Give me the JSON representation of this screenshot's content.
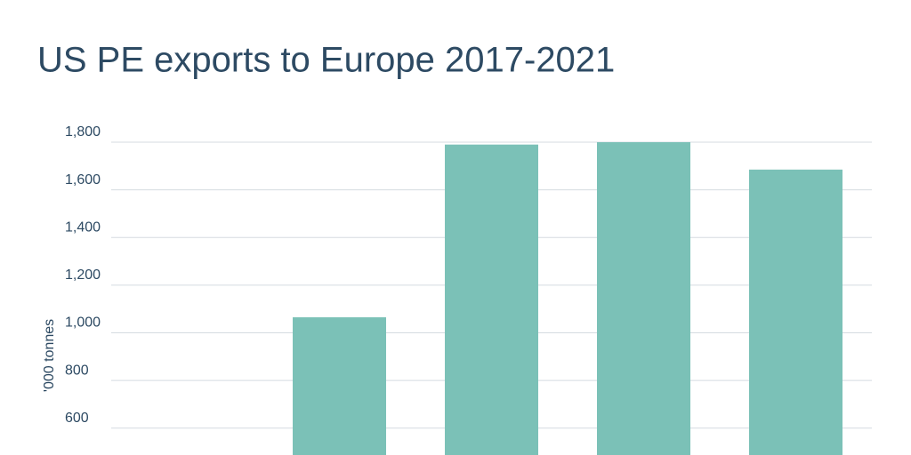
{
  "chart_data": {
    "type": "bar",
    "title": "US PE exports to Europe 2017-2021",
    "y_label": "'000 tonnes",
    "categories": [
      null,
      null,
      null,
      null,
      null
    ],
    "values": [
      null,
      1065,
      1790,
      1800,
      1685
    ],
    "color": "#7bc1b7",
    "ylim": [
      487,
      1800
    ],
    "yticks": [
      {
        "value": 600,
        "label": "600"
      },
      {
        "value": 800,
        "label": "800"
      },
      {
        "value": 1000,
        "label": "1,000"
      },
      {
        "value": 1200,
        "label": "1,200"
      },
      {
        "value": 1400,
        "label": "1,400"
      },
      {
        "value": 1600,
        "label": "1,600"
      },
      {
        "value": 1800,
        "label": "1,800"
      }
    ],
    "grid": true
  }
}
